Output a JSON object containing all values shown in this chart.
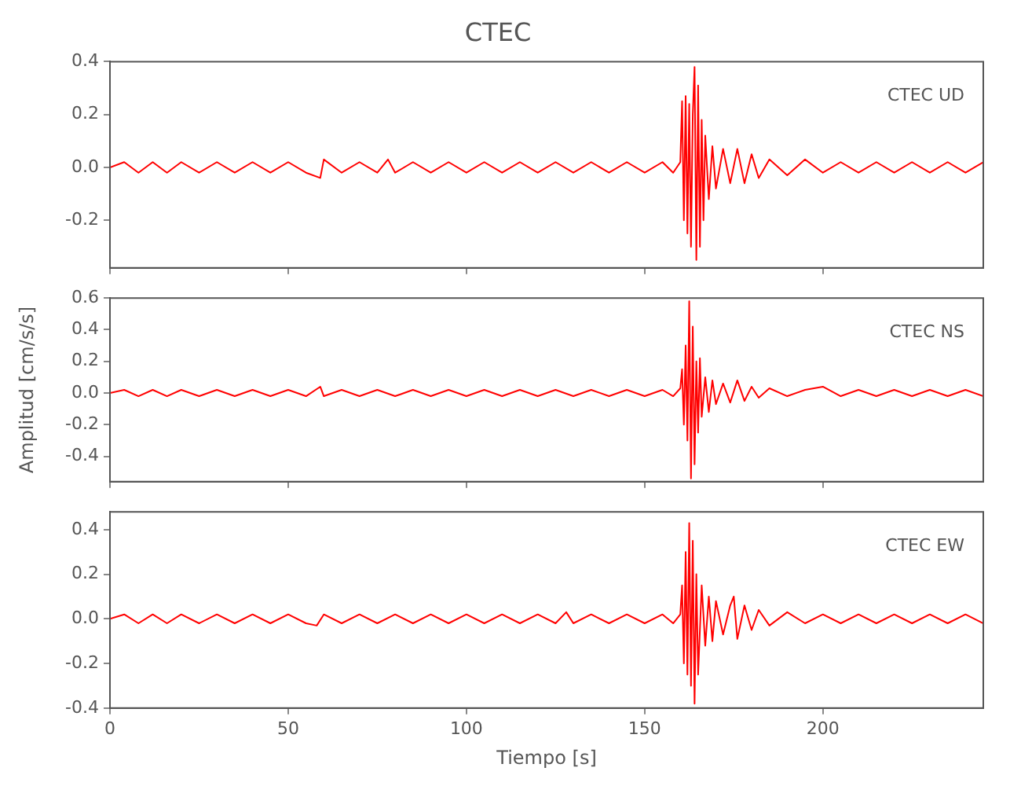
{
  "chart_data": [
    {
      "type": "line",
      "title": "CTEC",
      "marker": "none",
      "grid": false,
      "legend": false,
      "tick_labels": "y",
      "xlim": [
        0,
        245
      ],
      "xticks": [
        {
          "value": 0,
          "label": null
        },
        {
          "value": 50,
          "label": null
        },
        {
          "value": 100,
          "label": null
        },
        {
          "value": 150,
          "label": null
        },
        {
          "value": 200,
          "label": null
        }
      ],
      "ylim": [
        -0.38,
        0.4
      ],
      "yticks": [
        {
          "value": -0.2,
          "label": "-0.2"
        },
        {
          "value": 0,
          "label": "0.0"
        },
        {
          "value": 0.2,
          "label": "0.2"
        },
        {
          "value": 0.4,
          "label": "0.4"
        }
      ],
      "series": [
        {
          "name": "CTEC UD",
          "color": "#ff0000",
          "x": [
            0,
            4,
            8,
            12,
            16,
            20,
            25,
            30,
            35,
            40,
            45,
            50,
            55,
            59,
            60,
            65,
            70,
            75,
            78,
            80,
            85,
            90,
            95,
            100,
            105,
            110,
            115,
            120,
            125,
            130,
            135,
            140,
            145,
            150,
            155,
            158,
            160,
            160.5,
            161,
            161.5,
            162,
            162.5,
            163,
            163.5,
            164,
            164.5,
            165,
            165.5,
            166,
            166.5,
            167,
            168,
            169,
            170,
            172,
            174,
            176,
            178,
            180,
            182,
            185,
            190,
            195,
            200,
            205,
            210,
            215,
            220,
            225,
            230,
            235,
            240,
            245
          ],
          "values": [
            0,
            0.02,
            -0.02,
            0.02,
            -0.02,
            0.02,
            -0.02,
            0.02,
            -0.02,
            0.02,
            -0.02,
            0.02,
            -0.02,
            -0.04,
            0.03,
            -0.02,
            0.02,
            -0.02,
            0.03,
            -0.02,
            0.02,
            -0.02,
            0.02,
            -0.02,
            0.02,
            -0.02,
            0.02,
            -0.02,
            0.02,
            -0.02,
            0.02,
            -0.02,
            0.02,
            -0.02,
            0.02,
            -0.02,
            0.02,
            0.25,
            -0.2,
            0.27,
            -0.25,
            0.24,
            -0.3,
            0.2,
            0.38,
            -0.35,
            0.31,
            -0.3,
            0.18,
            -0.2,
            0.12,
            -0.12,
            0.08,
            -0.08,
            0.07,
            -0.06,
            0.07,
            -0.06,
            0.05,
            -0.04,
            0.03,
            -0.03,
            0.03,
            -0.02,
            0.02,
            -0.02,
            0.02,
            -0.02,
            0.02,
            -0.02,
            0.02,
            -0.02,
            0.02
          ]
        }
      ]
    },
    {
      "type": "line",
      "ylabel": "Amplitud [cm/s/s]",
      "marker": "none",
      "grid": false,
      "legend": false,
      "tick_labels": "y",
      "xlim": [
        0,
        245
      ],
      "xticks": [
        {
          "value": 0,
          "label": null
        },
        {
          "value": 50,
          "label": null
        },
        {
          "value": 100,
          "label": null
        },
        {
          "value": 150,
          "label": null
        },
        {
          "value": 200,
          "label": null
        }
      ],
      "ylim": [
        -0.56,
        0.6
      ],
      "yticks": [
        {
          "value": -0.4,
          "label": "-0.4"
        },
        {
          "value": -0.2,
          "label": "-0.2"
        },
        {
          "value": 0,
          "label": "0.0"
        },
        {
          "value": 0.2,
          "label": "0.2"
        },
        {
          "value": 0.4,
          "label": "0.4"
        },
        {
          "value": 0.6,
          "label": "0.6"
        }
      ],
      "series": [
        {
          "name": "CTEC NS",
          "color": "#ff0000",
          "x": [
            0,
            4,
            8,
            12,
            16,
            20,
            25,
            30,
            35,
            40,
            45,
            50,
            55,
            59,
            60,
            65,
            70,
            75,
            80,
            85,
            90,
            95,
            100,
            105,
            110,
            115,
            120,
            125,
            130,
            135,
            140,
            145,
            150,
            155,
            158,
            160,
            160.5,
            161,
            161.5,
            162,
            162.5,
            163,
            163.5,
            164,
            164.5,
            165,
            165.5,
            166,
            167,
            168,
            169,
            170,
            172,
            174,
            176,
            178,
            180,
            182,
            185,
            190,
            195,
            200,
            205,
            210,
            215,
            220,
            225,
            230,
            235,
            240,
            245
          ],
          "values": [
            0,
            0.02,
            -0.02,
            0.02,
            -0.02,
            0.02,
            -0.02,
            0.02,
            -0.02,
            0.02,
            -0.02,
            0.02,
            -0.02,
            0.04,
            -0.02,
            0.02,
            -0.02,
            0.02,
            -0.02,
            0.02,
            -0.02,
            0.02,
            -0.02,
            0.02,
            -0.02,
            0.02,
            -0.02,
            0.02,
            -0.02,
            0.02,
            -0.02,
            0.02,
            -0.02,
            0.02,
            -0.02,
            0.03,
            0.15,
            -0.2,
            0.3,
            -0.3,
            0.58,
            -0.54,
            0.42,
            -0.45,
            0.2,
            -0.25,
            0.22,
            -0.15,
            0.1,
            -0.12,
            0.08,
            -0.07,
            0.06,
            -0.06,
            0.08,
            -0.05,
            0.04,
            -0.03,
            0.03,
            -0.02,
            0.02,
            0.04,
            -0.02,
            0.02,
            -0.02,
            0.02,
            -0.02,
            0.02,
            -0.02,
            0.02,
            -0.02
          ]
        }
      ]
    },
    {
      "type": "line",
      "xlabel": "Tiempo [s]",
      "marker": "none",
      "grid": false,
      "legend": false,
      "xlim": [
        0,
        245
      ],
      "xticks": [
        {
          "value": 0,
          "label": "0"
        },
        {
          "value": 50,
          "label": "50"
        },
        {
          "value": 100,
          "label": "100"
        },
        {
          "value": 150,
          "label": "150"
        },
        {
          "value": 200,
          "label": "200"
        }
      ],
      "ylim": [
        -0.4,
        0.48
      ],
      "yticks": [
        {
          "value": -0.4,
          "label": "-0.4"
        },
        {
          "value": -0.2,
          "label": "-0.2"
        },
        {
          "value": 0,
          "label": "0.0"
        },
        {
          "value": 0.2,
          "label": "0.2"
        },
        {
          "value": 0.4,
          "label": "0.4"
        }
      ],
      "series": [
        {
          "name": "CTEC EW",
          "color": "#ff0000",
          "x": [
            0,
            4,
            8,
            12,
            16,
            20,
            25,
            30,
            35,
            40,
            45,
            50,
            55,
            58,
            60,
            65,
            70,
            75,
            80,
            85,
            90,
            95,
            100,
            105,
            110,
            115,
            120,
            125,
            128,
            130,
            135,
            140,
            145,
            150,
            155,
            158,
            160,
            160.5,
            161,
            161.5,
            162,
            162.5,
            163,
            163.5,
            164,
            164.5,
            165,
            166,
            167,
            168,
            169,
            170,
            172,
            174,
            175,
            176,
            178,
            180,
            182,
            185,
            190,
            195,
            200,
            205,
            210,
            215,
            220,
            225,
            230,
            235,
            240,
            245
          ],
          "values": [
            0,
            0.02,
            -0.02,
            0.02,
            -0.02,
            0.02,
            -0.02,
            0.02,
            -0.02,
            0.02,
            -0.02,
            0.02,
            -0.02,
            -0.03,
            0.02,
            -0.02,
            0.02,
            -0.02,
            0.02,
            -0.02,
            0.02,
            -0.02,
            0.02,
            -0.02,
            0.02,
            -0.02,
            0.02,
            -0.02,
            0.03,
            -0.02,
            0.02,
            -0.02,
            0.02,
            -0.02,
            0.02,
            -0.02,
            0.02,
            0.15,
            -0.2,
            0.3,
            -0.25,
            0.43,
            -0.3,
            0.35,
            -0.38,
            0.2,
            -0.25,
            0.15,
            -0.12,
            0.1,
            -0.1,
            0.08,
            -0.07,
            0.06,
            0.1,
            -0.09,
            0.06,
            -0.05,
            0.04,
            -0.03,
            0.03,
            -0.02,
            0.02,
            -0.02,
            0.02,
            -0.02,
            0.02,
            -0.02,
            0.02,
            -0.02,
            0.02,
            -0.02
          ]
        }
      ]
    }
  ]
}
